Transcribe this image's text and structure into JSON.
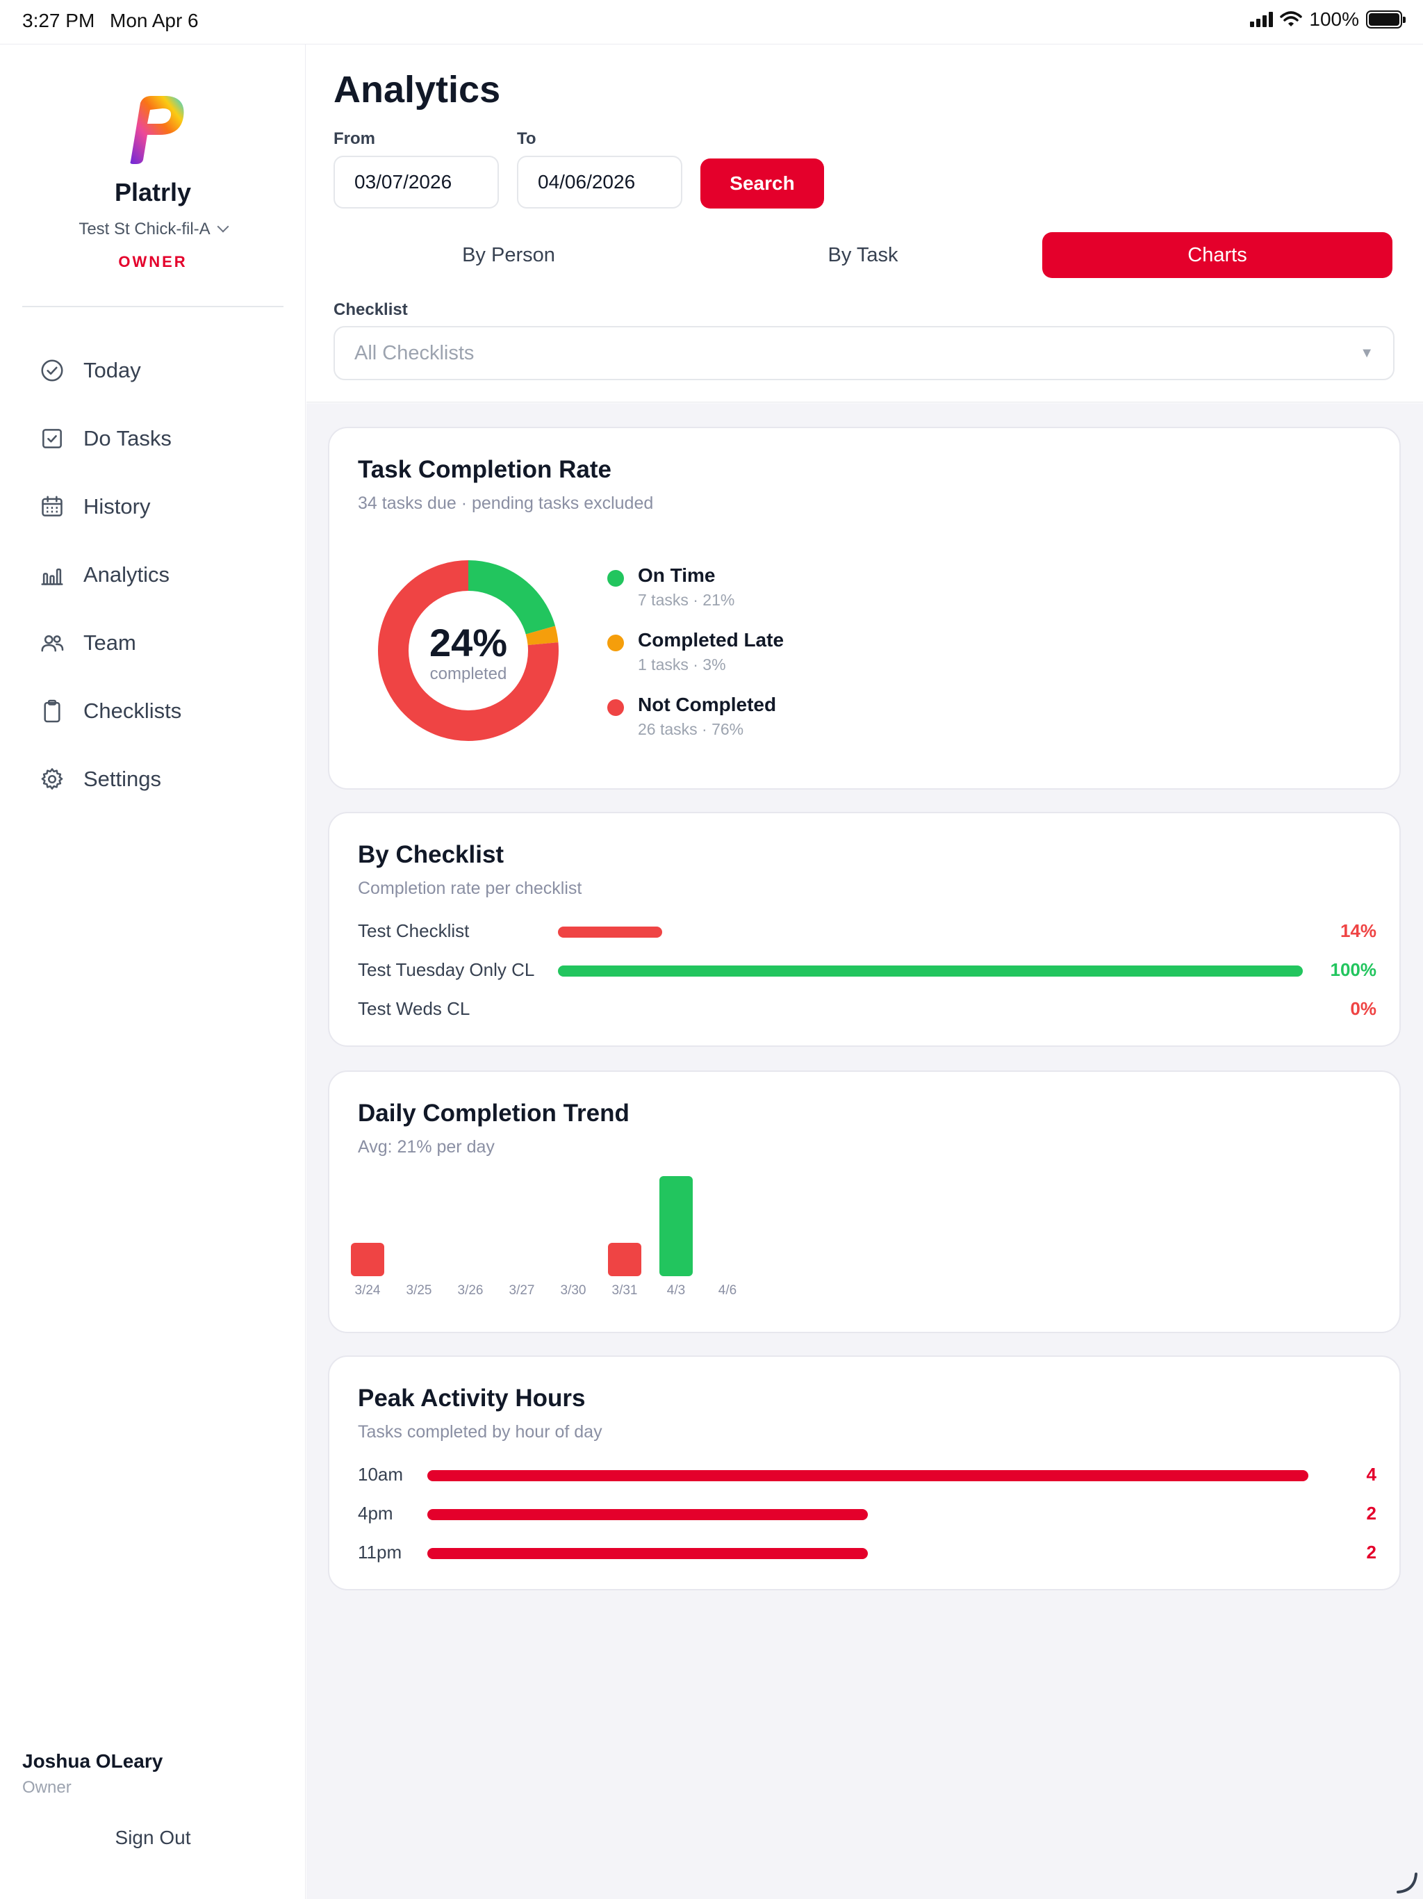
{
  "status_bar": {
    "time": "3:27 PM",
    "date": "Mon Apr 6",
    "battery": "100%"
  },
  "sidebar": {
    "brand": "Platrly",
    "store": "Test St Chick-fil-A",
    "role": "OWNER",
    "items": [
      {
        "label": "Today",
        "icon": "check-circle-icon"
      },
      {
        "label": "Do Tasks",
        "icon": "checkbox-icon"
      },
      {
        "label": "History",
        "icon": "calendar-icon"
      },
      {
        "label": "Analytics",
        "icon": "bar-chart-icon"
      },
      {
        "label": "Team",
        "icon": "team-icon"
      },
      {
        "label": "Checklists",
        "icon": "clipboard-icon"
      },
      {
        "label": "Settings",
        "icon": "gear-icon"
      }
    ],
    "user_name": "Joshua OLeary",
    "user_role": "Owner",
    "sign_out": "Sign Out"
  },
  "header": {
    "title": "Analytics",
    "from_label": "From",
    "from_value": "03/07/2026",
    "to_label": "To",
    "to_value": "04/06/2026",
    "search": "Search",
    "tabs": [
      "By Person",
      "By Task",
      "Charts"
    ],
    "active_tab": "Charts",
    "checklist_label": "Checklist",
    "checklist_value": "All Checklists"
  },
  "colors": {
    "accent": "#e4002b",
    "green": "#22c55e",
    "orange": "#f59e0b",
    "red": "#ef4444"
  },
  "completion_card": {
    "title": "Task Completion Rate",
    "subtitle": "34 tasks due · pending tasks excluded",
    "center_value": "24%",
    "center_label": "completed",
    "legend": [
      {
        "label": "On Time",
        "detail": "7 tasks · 21%"
      },
      {
        "label": "Completed Late",
        "detail": "1 tasks · 3%"
      },
      {
        "label": "Not Completed",
        "detail": "26 tasks · 76%"
      }
    ]
  },
  "checklist_card": {
    "title": "By Checklist",
    "subtitle": "Completion rate per checklist",
    "rows": [
      {
        "label": "Test Checklist",
        "value": "14%"
      },
      {
        "label": "Test Tuesday Only CL",
        "value": "100%"
      },
      {
        "label": "Test Weds CL",
        "value": "0%"
      }
    ]
  },
  "trend_card": {
    "title": "Daily Completion Trend",
    "subtitle": "Avg: 21% per day"
  },
  "peak_card": {
    "title": "Peak Activity Hours",
    "subtitle": "Tasks completed by hour of day",
    "rows": [
      {
        "label": "10am",
        "value": "4"
      },
      {
        "label": "4pm",
        "value": "2"
      },
      {
        "label": "11pm",
        "value": "2"
      }
    ]
  },
  "chart_data": [
    {
      "type": "pie",
      "categories": [
        "On Time",
        "Completed Late",
        "Not Completed"
      ],
      "values": [
        7,
        1,
        26
      ],
      "colors": [
        "#22c55e",
        "#f59e0b",
        "#ef4444"
      ]
    },
    {
      "type": "bar",
      "categories": [
        "Test Checklist",
        "Test Tuesday Only CL",
        "Test Weds CL"
      ],
      "values": [
        14,
        100,
        0
      ],
      "ylim": [
        0,
        100
      ]
    },
    {
      "type": "bar",
      "categories": [
        "3/24",
        "3/25",
        "3/26",
        "3/27",
        "3/30",
        "3/31",
        "4/3",
        "4/6"
      ],
      "values": [
        33,
        0,
        0,
        0,
        0,
        33,
        100,
        0
      ],
      "colors": [
        "#ef4444",
        "#ef4444",
        "#ef4444",
        "#ef4444",
        "#ef4444",
        "#ef4444",
        "#22c55e",
        "#ef4444"
      ],
      "ylim": [
        0,
        100
      ]
    },
    {
      "type": "bar",
      "categories": [
        "10am",
        "4pm",
        "11pm"
      ],
      "values": [
        4,
        2,
        2
      ],
      "ylim": [
        0,
        4
      ]
    }
  ]
}
